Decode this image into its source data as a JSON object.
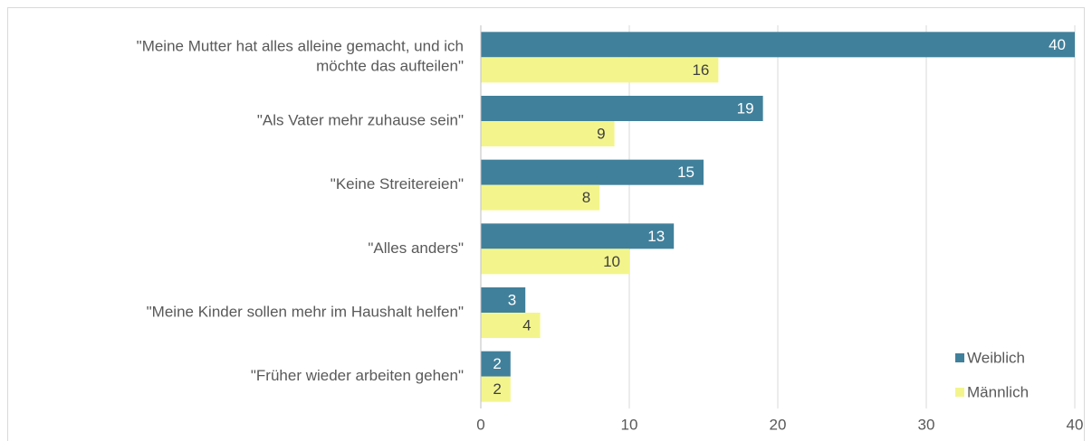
{
  "chart_data": {
    "type": "barh",
    "categories": [
      "\"Meine Mutter hat alles alleine gemacht, und ich möchte das aufteilen\"",
      "\"Als Vater mehr zuhause sein\"",
      "\"Keine Streitereien\"",
      "\"Alles anders\"",
      "\"Meine Kinder sollen mehr im Haushalt helfen\"",
      "\"Früher wieder arbeiten gehen\""
    ],
    "series": [
      {
        "name": "Weiblich",
        "color": "#41809b",
        "values": [
          40,
          19,
          15,
          13,
          3,
          2
        ]
      },
      {
        "name": "Männlich",
        "color": "#f3f58c",
        "values": [
          16,
          9,
          8,
          10,
          4,
          2
        ]
      }
    ],
    "xlim": [
      0,
      40
    ],
    "xticks": [
      0,
      10,
      20,
      30,
      40
    ],
    "grid": true,
    "legend": "lower right"
  }
}
